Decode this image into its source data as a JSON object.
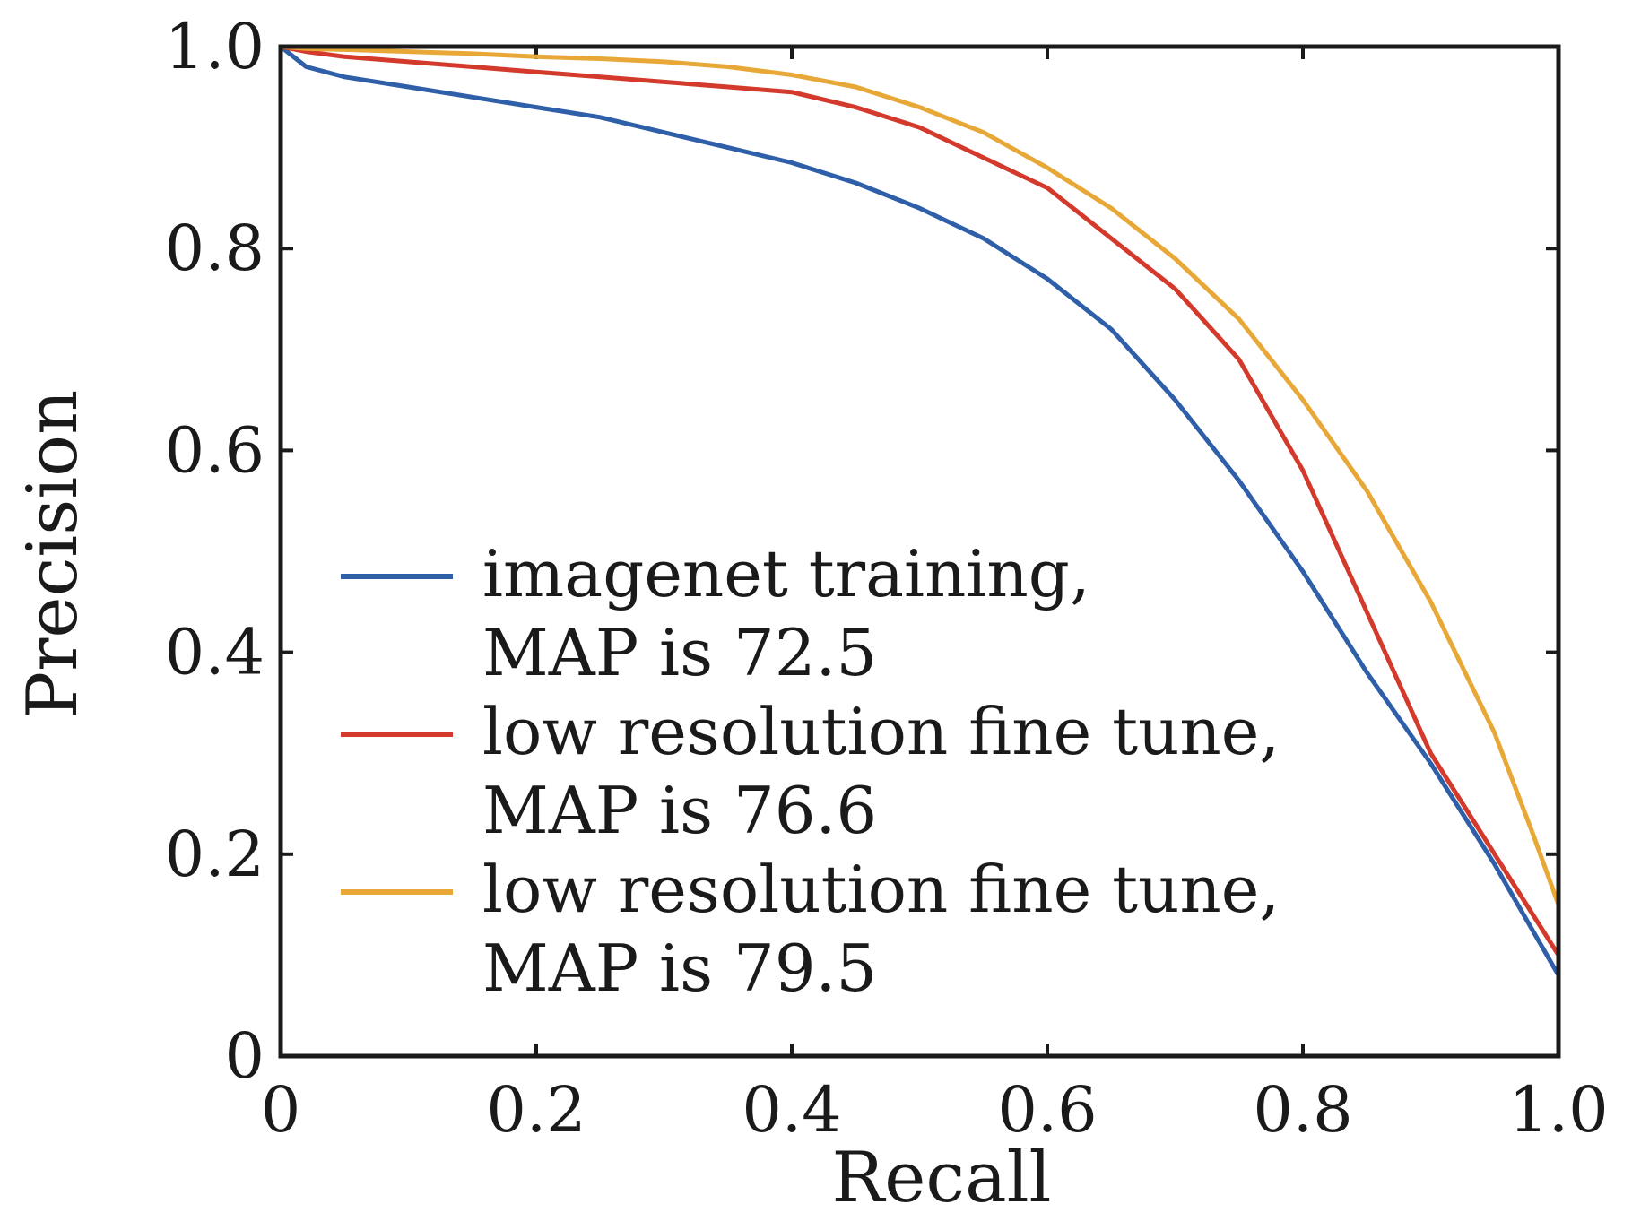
{
  "chart_data": {
    "type": "line",
    "title": "",
    "xlabel": "Recall",
    "ylabel": "Precision",
    "xlim": [
      0,
      1
    ],
    "ylim": [
      0,
      1
    ],
    "grid": false,
    "legend_position": "bottom-left",
    "x_ticks": [
      {
        "value": 0,
        "label": "0"
      },
      {
        "value": 0.2,
        "label": "0.2"
      },
      {
        "value": 0.4,
        "label": "0.4"
      },
      {
        "value": 0.6,
        "label": "0.6"
      },
      {
        "value": 0.8,
        "label": "0.8"
      },
      {
        "value": 1.0,
        "label": "1.0"
      }
    ],
    "y_ticks": [
      {
        "value": 0,
        "label": "0"
      },
      {
        "value": 0.2,
        "label": "0.2"
      },
      {
        "value": 0.4,
        "label": "0.4"
      },
      {
        "value": 0.6,
        "label": "0.6"
      },
      {
        "value": 0.8,
        "label": "0.8"
      },
      {
        "value": 1.0,
        "label": "1.0"
      }
    ],
    "series": [
      {
        "name": "imagenet training, MAP is 72.5",
        "legend_lines": [
          "imagenet training,",
          "MAP is 72.5"
        ],
        "color": "#2f5fa8",
        "x": [
          0,
          0.02,
          0.05,
          0.1,
          0.15,
          0.2,
          0.25,
          0.3,
          0.35,
          0.4,
          0.45,
          0.5,
          0.55,
          0.6,
          0.65,
          0.7,
          0.75,
          0.8,
          0.85,
          0.9,
          0.95,
          1.0
        ],
        "y": [
          1.0,
          0.98,
          0.97,
          0.96,
          0.95,
          0.94,
          0.93,
          0.915,
          0.9,
          0.885,
          0.865,
          0.84,
          0.81,
          0.77,
          0.72,
          0.65,
          0.57,
          0.48,
          0.38,
          0.29,
          0.19,
          0.08
        ]
      },
      {
        "name": "low resolution fine tune, MAP is 76.6",
        "legend_lines": [
          "low resolution fine tune,",
          "MAP is 76.6"
        ],
        "color": "#d33a2c",
        "x": [
          0,
          0.02,
          0.05,
          0.1,
          0.15,
          0.2,
          0.25,
          0.3,
          0.35,
          0.4,
          0.45,
          0.5,
          0.55,
          0.6,
          0.65,
          0.7,
          0.75,
          0.8,
          0.85,
          0.9,
          0.95,
          1.0
        ],
        "y": [
          1.0,
          0.995,
          0.99,
          0.985,
          0.98,
          0.975,
          0.97,
          0.965,
          0.96,
          0.955,
          0.94,
          0.92,
          0.89,
          0.86,
          0.81,
          0.76,
          0.69,
          0.58,
          0.44,
          0.3,
          0.2,
          0.1
        ]
      },
      {
        "name": "low resolution fine tune, MAP is 79.5",
        "legend_lines": [
          "low resolution fine tune,",
          "MAP is 79.5"
        ],
        "color": "#e8a838",
        "x": [
          0,
          0.02,
          0.05,
          0.1,
          0.15,
          0.2,
          0.25,
          0.3,
          0.35,
          0.4,
          0.45,
          0.5,
          0.55,
          0.6,
          0.65,
          0.7,
          0.75,
          0.8,
          0.85,
          0.9,
          0.95,
          0.98,
          1.0
        ],
        "y": [
          1.0,
          0.998,
          0.997,
          0.995,
          0.993,
          0.99,
          0.988,
          0.985,
          0.98,
          0.972,
          0.96,
          0.94,
          0.915,
          0.88,
          0.84,
          0.79,
          0.73,
          0.65,
          0.56,
          0.45,
          0.32,
          0.22,
          0.15
        ]
      }
    ]
  }
}
